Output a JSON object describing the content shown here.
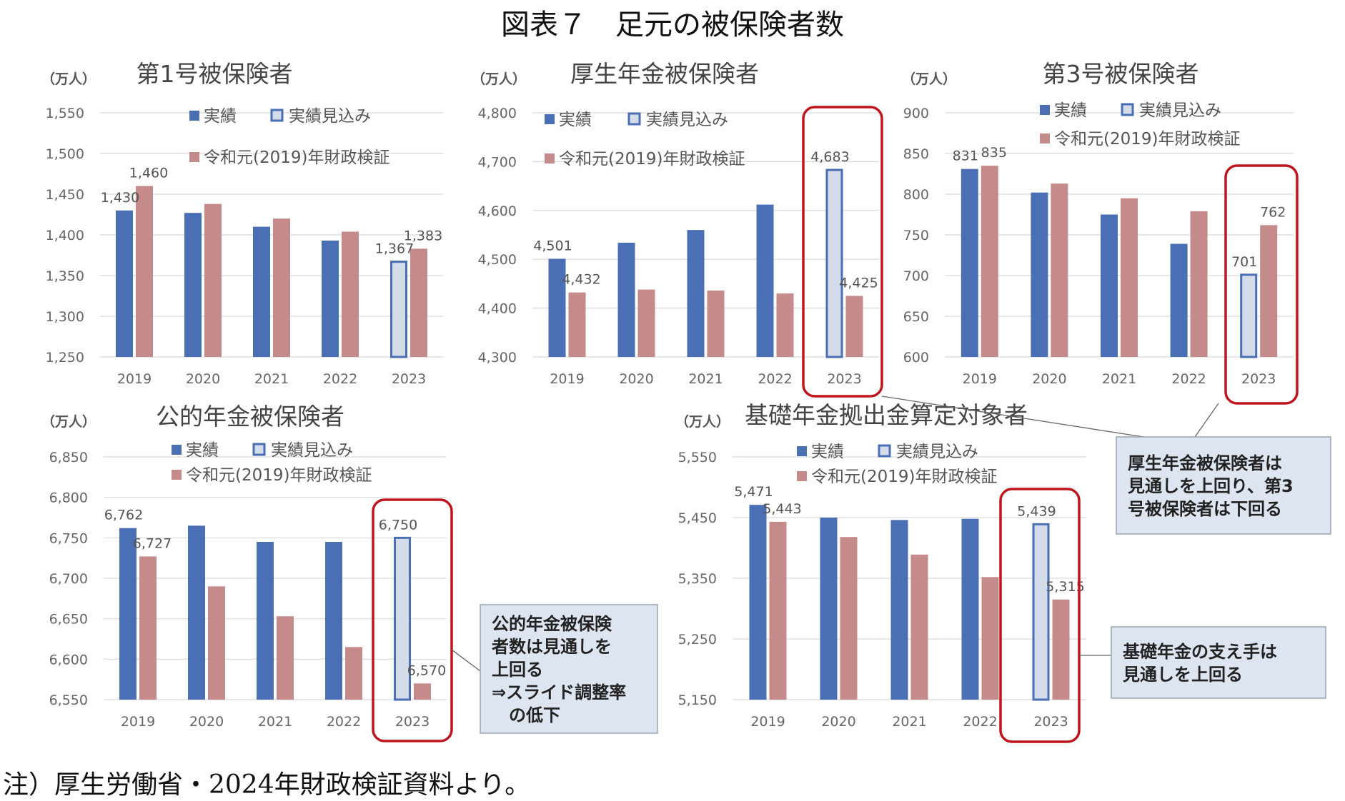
{
  "main_title": "図表７　足元の被保険者数",
  "source_note": "注）厚生労働省・2024年財政検証資料より。",
  "unit_label": "（万人）",
  "legend": {
    "actual": "実績",
    "estimate": "実績見込み",
    "projection": "令和元(2019)年財政検証"
  },
  "colors": {
    "actual": "#4a6fb5",
    "estimate_fill": "#d4dcea",
    "estimate_stroke": "#4a6fb5",
    "projection": "#c58a8a",
    "highlight": "#c0141c",
    "callout_fill": "#dde5f1"
  },
  "callouts": [
    {
      "id": "kosei-daisan",
      "lines": [
        "厚生年金被保険者は",
        "見通しを上回り、第3",
        "号被保険者は下回る"
      ]
    },
    {
      "id": "kouteki",
      "lines": [
        "公的年金被保険",
        "者数は見通しを",
        "上回る",
        "⇒スライド調整率",
        "　の低下"
      ]
    },
    {
      "id": "kiso",
      "lines": [
        "基礎年金の支え手は",
        "見通しを上回る"
      ]
    }
  ],
  "chart_data": [
    {
      "type": "bar",
      "title": "第1号被保険者",
      "categories": [
        "2019",
        "2020",
        "2021",
        "2022",
        "2023"
      ],
      "ylim": [
        1250,
        1550
      ],
      "yticks": [
        "1,250",
        "1,300",
        "1,350",
        "1,400",
        "1,450",
        "1,500",
        "1,550"
      ],
      "series": [
        {
          "name": "実績",
          "values": [
            1430,
            1427,
            1410,
            1393,
            1367
          ],
          "estimate_index": 4
        },
        {
          "name": "令和元(2019)年財政検証",
          "values": [
            1460,
            1438,
            1420,
            1404,
            1383
          ]
        }
      ],
      "data_labels": {
        "actual": {
          "0": "1,430",
          "4": "1,367"
        },
        "projection": {
          "0": "1,460",
          "4": "1,383"
        }
      },
      "highlight_2023": false
    },
    {
      "type": "bar",
      "title": "厚生年金被保険者",
      "categories": [
        "2019",
        "2020",
        "2021",
        "2022",
        "2023"
      ],
      "ylim": [
        4300,
        4800
      ],
      "yticks": [
        "4,300",
        "4,400",
        "4,500",
        "4,600",
        "4,700",
        "4,800"
      ],
      "series": [
        {
          "name": "実績",
          "values": [
            4501,
            4534,
            4560,
            4612,
            4683
          ],
          "estimate_index": 4
        },
        {
          "name": "令和元(2019)年財政検証",
          "values": [
            4432,
            4438,
            4436,
            4430,
            4425
          ]
        }
      ],
      "data_labels": {
        "actual": {
          "0": "4,501",
          "4": "4,683"
        },
        "projection": {
          "0": "4,432",
          "4": "4,425"
        }
      },
      "highlight_2023": true
    },
    {
      "type": "bar",
      "title": "第3号被保険者",
      "categories": [
        "2019",
        "2020",
        "2021",
        "2022",
        "2023"
      ],
      "ylim": [
        600,
        900
      ],
      "yticks": [
        "600",
        "650",
        "700",
        "750",
        "800",
        "850",
        "900"
      ],
      "series": [
        {
          "name": "実績",
          "values": [
            831,
            802,
            775,
            739,
            701
          ],
          "estimate_index": 4
        },
        {
          "name": "令和元(2019)年財政検証",
          "values": [
            835,
            813,
            795,
            779,
            762
          ]
        }
      ],
      "data_labels": {
        "actual": {
          "0": "831",
          "4": "701"
        },
        "projection": {
          "0": "835",
          "4": "762"
        }
      },
      "highlight_2023": true
    },
    {
      "type": "bar",
      "title": "公的年金被保険者",
      "categories": [
        "2019",
        "2020",
        "2021",
        "2022",
        "2023"
      ],
      "ylim": [
        6550,
        6850
      ],
      "yticks": [
        "6,550",
        "6,600",
        "6,650",
        "6,700",
        "6,750",
        "6,800",
        "6,850"
      ],
      "series": [
        {
          "name": "実績",
          "values": [
            6762,
            6765,
            6745,
            6745,
            6750
          ],
          "estimate_index": 4
        },
        {
          "name": "令和元(2019)年財政検証",
          "values": [
            6727,
            6690,
            6653,
            6615,
            6570
          ]
        }
      ],
      "data_labels": {
        "actual": {
          "0": "6,762",
          "4": "6,750"
        },
        "projection": {
          "0": "6,727",
          "4": "6,570"
        }
      },
      "highlight_2023": true
    },
    {
      "type": "bar",
      "title": "基礎年金拠出金算定対象者",
      "categories": [
        "2019",
        "2020",
        "2021",
        "2022",
        "2023"
      ],
      "ylim": [
        5150,
        5550
      ],
      "yticks": [
        "5,150",
        "5,250",
        "5,350",
        "5,450",
        "5,550"
      ],
      "series": [
        {
          "name": "実績",
          "values": [
            5471,
            5450,
            5446,
            5448,
            5439
          ],
          "estimate_index": 4
        },
        {
          "name": "令和元(2019)年財政検証",
          "values": [
            5443,
            5418,
            5389,
            5352,
            5315
          ]
        }
      ],
      "data_labels": {
        "actual": {
          "0": "5,471",
          "4": "5,439"
        },
        "projection": {
          "0": "5,443",
          "4": "5,315"
        }
      },
      "highlight_2023": true
    }
  ]
}
